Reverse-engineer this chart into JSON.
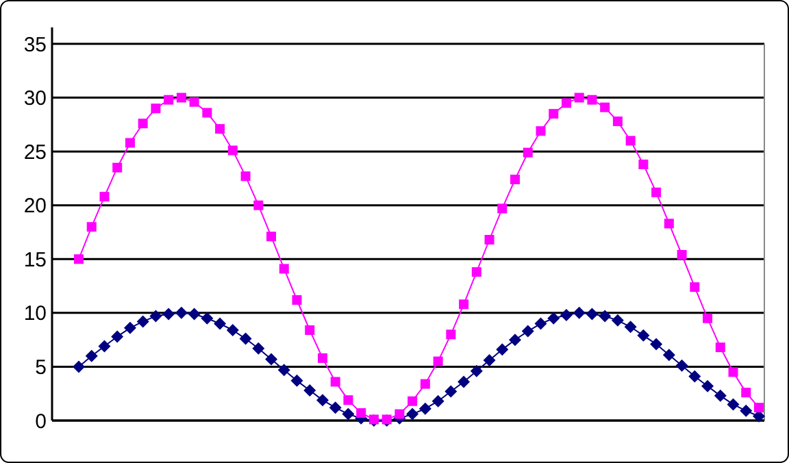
{
  "chart_data": {
    "type": "line",
    "categories": [
      null,
      null,
      null,
      null,
      null,
      null,
      null,
      null,
      null,
      null,
      null,
      null,
      null,
      null,
      null,
      null,
      null,
      null,
      null,
      null,
      null,
      null,
      null,
      null,
      null,
      null,
      null,
      null,
      null,
      null,
      null,
      null,
      null,
      null,
      null,
      null,
      null,
      null,
      null,
      null,
      null,
      null,
      null,
      null,
      null,
      null,
      null,
      null,
      null,
      null,
      null,
      null,
      null,
      null
    ],
    "series": [
      {
        "color": "#ff00ff",
        "marker": "square",
        "values": [
          15,
          18,
          20.8,
          23.5,
          25.8,
          27.6,
          29,
          29.8,
          30,
          29.6,
          28.6,
          27.1,
          25.1,
          22.7,
          20,
          17.1,
          14.1,
          11.2,
          8.4,
          5.8,
          3.6,
          1.9,
          0.7,
          0.1,
          0.1,
          0.6,
          1.8,
          3.4,
          5.5,
          8,
          10.8,
          13.8,
          16.8,
          19.7,
          22.4,
          24.9,
          26.9,
          28.5,
          29.5,
          30,
          29.8,
          29.1,
          27.8,
          26,
          23.8,
          21.2,
          18.3,
          15.4,
          12.4,
          9.5,
          6.8,
          4.5,
          2.6,
          1.2
        ]
      },
      {
        "color": "#000080",
        "marker": "diamond",
        "values": [
          5,
          6,
          6.9,
          7.8,
          8.6,
          9.2,
          9.7,
          9.9,
          10,
          9.9,
          9.5,
          9,
          8.4,
          7.6,
          6.7,
          5.7,
          4.7,
          3.7,
          2.8,
          1.9,
          1.2,
          0.6,
          0.2,
          0,
          0,
          0.2,
          0.6,
          1.1,
          1.8,
          2.7,
          3.6,
          4.6,
          5.6,
          6.6,
          7.5,
          8.3,
          9,
          9.5,
          9.8,
          10,
          9.9,
          9.7,
          9.3,
          8.7,
          7.9,
          7.1,
          6.1,
          5.1,
          4.1,
          3.2,
          2.3,
          1.5,
          0.9,
          0.4
        ]
      }
    ],
    "ylim": [
      0,
      35
    ],
    "yticks": [
      0,
      5,
      10,
      15,
      20,
      25,
      30,
      35
    ],
    "grid": "y"
  }
}
